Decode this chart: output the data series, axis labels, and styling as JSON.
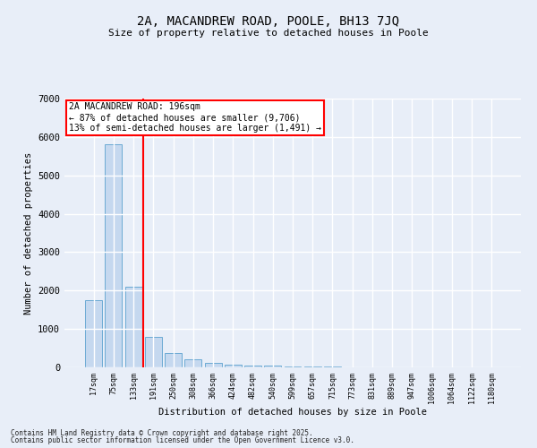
{
  "title1": "2A, MACANDREW ROAD, POOLE, BH13 7JQ",
  "title2": "Size of property relative to detached houses in Poole",
  "xlabel": "Distribution of detached houses by size in Poole",
  "ylabel": "Number of detached properties",
  "categories": [
    "17sqm",
    "75sqm",
    "133sqm",
    "191sqm",
    "250sqm",
    "308sqm",
    "366sqm",
    "424sqm",
    "482sqm",
    "540sqm",
    "599sqm",
    "657sqm",
    "715sqm",
    "773sqm",
    "831sqm",
    "889sqm",
    "947sqm",
    "1006sqm",
    "1064sqm",
    "1122sqm",
    "1180sqm"
  ],
  "values": [
    1750,
    5800,
    2100,
    800,
    375,
    200,
    125,
    75,
    50,
    40,
    30,
    20,
    15,
    10,
    8,
    6,
    5,
    4,
    3,
    2,
    1
  ],
  "bar_color": "#c5d8ef",
  "bar_edge_color": "#6baad4",
  "reference_line_x": 2.5,
  "annotation_text": "2A MACANDREW ROAD: 196sqm\n← 87% of detached houses are smaller (9,706)\n13% of semi-detached houses are larger (1,491) →",
  "annotation_box_color": "white",
  "annotation_box_edge": "red",
  "reference_line_color": "red",
  "footer1": "Contains HM Land Registry data © Crown copyright and database right 2025.",
  "footer2": "Contains public sector information licensed under the Open Government Licence v3.0.",
  "background_color": "#e8eef8",
  "ylim": [
    0,
    7000
  ],
  "yticks": [
    0,
    1000,
    2000,
    3000,
    4000,
    5000,
    6000,
    7000
  ]
}
